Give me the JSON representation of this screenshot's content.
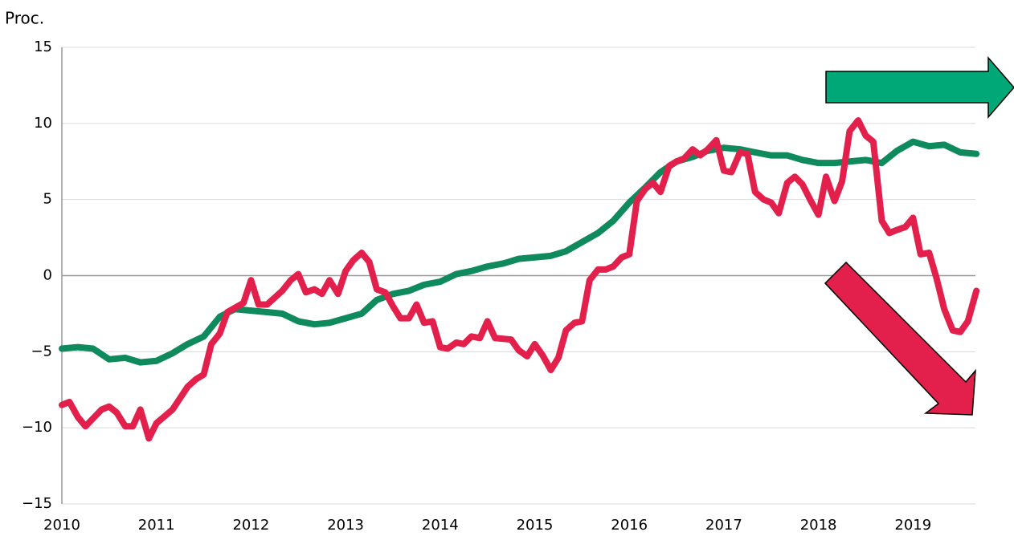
{
  "chart_data": {
    "type": "line",
    "y_label": "Proc.",
    "xlim": [
      2010,
      2019.66
    ],
    "xticks": [
      2010,
      2011,
      2012,
      2013,
      2014,
      2015,
      2016,
      2017,
      2018,
      2019
    ],
    "ylim": [
      -15,
      15
    ],
    "yticks": [
      {
        "value": -15,
        "label": "−15"
      },
      {
        "value": -10,
        "label": "−10"
      },
      {
        "value": -5,
        "label": "−5"
      },
      0,
      5,
      10,
      15
    ],
    "grid": true,
    "series": [
      {
        "color": "#0e8a5c",
        "x": [
          2010,
          2010.17,
          2010.33,
          2010.5,
          2010.67,
          2010.83,
          2011,
          2011.17,
          2011.33,
          2011.5,
          2011.67,
          2011.83,
          2012,
          2012.17,
          2012.33,
          2012.5,
          2012.67,
          2012.83,
          2013,
          2013.17,
          2013.33,
          2013.5,
          2013.67,
          2013.83,
          2014,
          2014.17,
          2014.33,
          2014.5,
          2014.67,
          2014.83,
          2015,
          2015.17,
          2015.33,
          2015.5,
          2015.67,
          2015.83,
          2016,
          2016.17,
          2016.33,
          2016.5,
          2016.67,
          2016.83,
          2017,
          2017.17,
          2017.33,
          2017.5,
          2017.67,
          2017.83,
          2018,
          2018.17,
          2018.33,
          2018.5,
          2018.67,
          2018.83,
          2019,
          2019.17,
          2019.33,
          2019.5,
          2019.67
        ],
        "values": [
          -4.8,
          -4.7,
          -4.8,
          -5.5,
          -5.4,
          -5.7,
          -5.6,
          -5.1,
          -4.5,
          -4.0,
          -2.7,
          -2.2,
          -2.3,
          -2.4,
          -2.5,
          -3.0,
          -3.2,
          -3.1,
          -2.8,
          -2.5,
          -1.6,
          -1.2,
          -1.0,
          -0.6,
          -0.4,
          0.1,
          0.3,
          0.6,
          0.8,
          1.1,
          1.2,
          1.3,
          1.6,
          2.2,
          2.8,
          3.6,
          4.8,
          5.8,
          6.8,
          7.5,
          7.8,
          8.2,
          8.4,
          8.3,
          8.1,
          7.9,
          7.9,
          7.6,
          7.4,
          7.4,
          7.5,
          7.6,
          7.4,
          8.2,
          8.8,
          8.5,
          8.6,
          8.1,
          8.0
        ]
      },
      {
        "color": "#e3204c",
        "x": [
          2010,
          2010.08,
          2010.17,
          2010.25,
          2010.42,
          2010.5,
          2010.58,
          2010.67,
          2010.75,
          2010.83,
          2010.92,
          2011,
          2011.17,
          2011.33,
          2011.42,
          2011.5,
          2011.58,
          2011.67,
          2011.75,
          2011.92,
          2012,
          2012.08,
          2012.17,
          2012.33,
          2012.42,
          2012.5,
          2012.58,
          2012.67,
          2012.75,
          2012.83,
          2012.92,
          2013,
          2013.08,
          2013.17,
          2013.25,
          2013.33,
          2013.42,
          2013.5,
          2013.58,
          2013.67,
          2013.75,
          2013.83,
          2013.92,
          2014,
          2014.08,
          2014.17,
          2014.25,
          2014.33,
          2014.42,
          2014.5,
          2014.58,
          2014.75,
          2014.83,
          2014.92,
          2015,
          2015.08,
          2015.17,
          2015.25,
          2015.33,
          2015.42,
          2015.5,
          2015.58,
          2015.67,
          2015.75,
          2015.83,
          2015.92,
          2016,
          2016.08,
          2016.17,
          2016.25,
          2016.33,
          2016.42,
          2016.5,
          2016.58,
          2016.67,
          2016.75,
          2016.83,
          2016.92,
          2017,
          2017.08,
          2017.17,
          2017.25,
          2017.33,
          2017.42,
          2017.5,
          2017.58,
          2017.67,
          2017.75,
          2017.83,
          2017.92,
          2018,
          2018.08,
          2018.17,
          2018.25,
          2018.33,
          2018.42,
          2018.5,
          2018.58,
          2018.67,
          2018.75,
          2018.83,
          2018.92,
          2019,
          2019.08,
          2019.17,
          2019.25,
          2019.33,
          2019.42,
          2019.5,
          2019.58,
          2019.67
        ],
        "values": [
          -8.5,
          -8.3,
          -9.3,
          -9.9,
          -8.8,
          -8.6,
          -9.0,
          -9.9,
          -9.9,
          -8.8,
          -10.7,
          -9.7,
          -8.8,
          -7.3,
          -6.8,
          -6.5,
          -4.5,
          -3.8,
          -2.4,
          -1.8,
          -0.3,
          -1.9,
          -1.9,
          -1.0,
          -0.3,
          0.1,
          -1.1,
          -0.9,
          -1.2,
          -0.3,
          -1.2,
          0.3,
          1.0,
          1.5,
          0.9,
          -0.9,
          -1.1,
          -2.0,
          -2.8,
          -2.8,
          -1.9,
          -3.1,
          -3.0,
          -4.7,
          -4.8,
          -4.4,
          -4.5,
          -4.0,
          -4.1,
          -3.0,
          -4.1,
          -4.2,
          -4.9,
          -5.3,
          -4.5,
          -5.2,
          -6.2,
          -5.4,
          -3.6,
          -3.1,
          -3.0,
          -0.3,
          0.4,
          0.4,
          0.6,
          1.2,
          1.4,
          4.9,
          5.7,
          6.1,
          5.5,
          7.2,
          7.5,
          7.7,
          8.3,
          7.9,
          8.3,
          8.9,
          6.9,
          6.8,
          8.1,
          8.0,
          5.5,
          5.0,
          4.8,
          4.1,
          6.1,
          6.5,
          6.0,
          4.9,
          4.0,
          6.5,
          4.9,
          6.2,
          9.5,
          10.2,
          9.2,
          8.8,
          3.6,
          2.8,
          3.0,
          3.2,
          3.8,
          1.4,
          1.5,
          -0.2,
          -2.2,
          -3.6,
          -3.7,
          -3.0,
          -1.0
        ]
      }
    ]
  }
}
